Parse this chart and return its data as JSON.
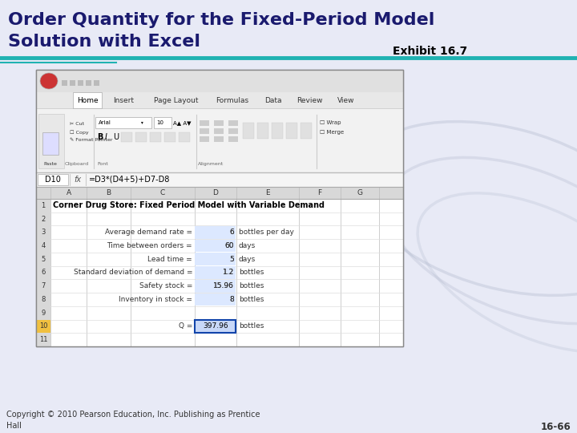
{
  "title_line1": "Order Quantity for the Fixed-Period Model",
  "title_line2": "Solution with Excel",
  "title_color": "#1a1a6e",
  "teal_line_color": "#20b2b2",
  "exhibit_text": "Exhibit 16.7",
  "copyright_text": "Copyright © 2010 Pearson Education, Inc. Publishing as Prentice\nHall",
  "page_number": "16-66",
  "slide_bg": "#e8eaf6",
  "formula_bar_cell": "D10",
  "formula_bar_formula": "=D3*(D4+5)+D7-D8",
  "rows": [
    {
      "row": 1,
      "label": "Corner Drug Store: Fixed Period Model with Variable Demand",
      "value": "",
      "unit": "",
      "bold": true
    },
    {
      "row": 2,
      "label": "",
      "value": "",
      "unit": "",
      "bold": false
    },
    {
      "row": 3,
      "label": "Average demand rate =",
      "value": "6",
      "unit": "bottles per day",
      "bold": false
    },
    {
      "row": 4,
      "label": "Time between orders =",
      "value": "60",
      "unit": "days",
      "bold": false
    },
    {
      "row": 5,
      "label": "Lead time =",
      "value": "5",
      "unit": "days",
      "bold": false
    },
    {
      "row": 6,
      "label": "Standard deviation of demand =",
      "value": "1.2",
      "unit": "bottles",
      "bold": false
    },
    {
      "row": 7,
      "label": "Safety stock =",
      "value": "15.96",
      "unit": "bottles",
      "bold": false
    },
    {
      "row": 8,
      "label": "Inventory in stock =",
      "value": "8",
      "unit": "bottles",
      "bold": false
    },
    {
      "row": 9,
      "label": "",
      "value": "",
      "unit": "",
      "bold": false
    },
    {
      "row": 10,
      "label": "Q =",
      "value": "397.96",
      "unit": "bottles",
      "bold": false
    },
    {
      "row": 11,
      "label": "",
      "value": "",
      "unit": "",
      "bold": false
    }
  ],
  "tabs": [
    "Home",
    "Insert",
    "Page Layout",
    "Formulas",
    "Data",
    "Review",
    "View"
  ]
}
